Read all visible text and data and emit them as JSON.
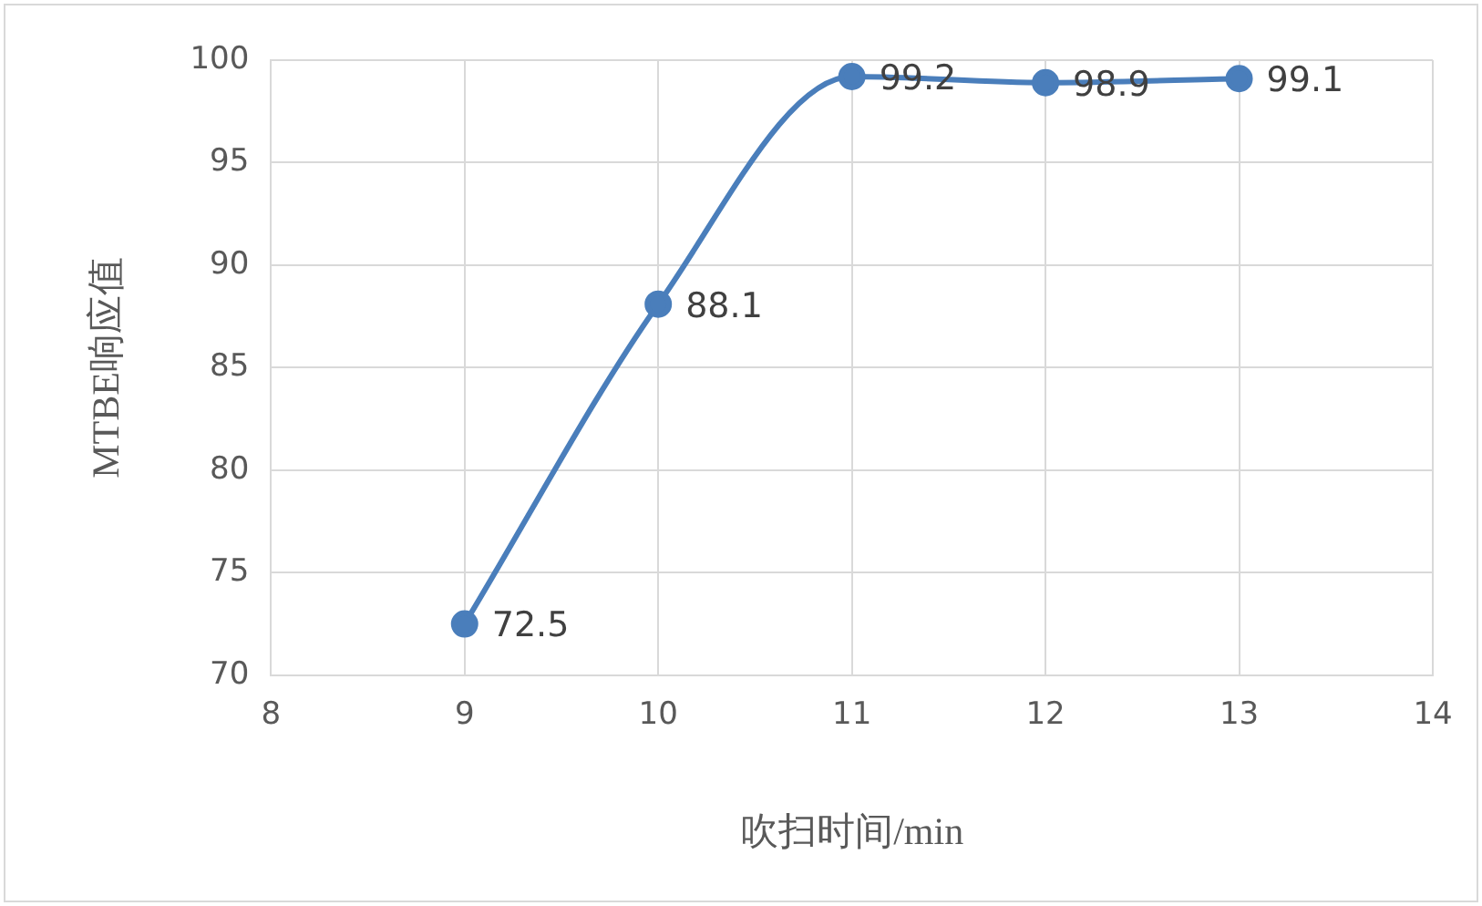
{
  "chart_data": {
    "type": "line",
    "xlabel": "吹扫时间/min",
    "ylabel": "MTBE响应值",
    "x": [
      9,
      10,
      11,
      12,
      13
    ],
    "series": [
      {
        "color": "#4a7ebb",
        "values": [
          72.5,
          88.1,
          99.2,
          98.9,
          99.1
        ]
      }
    ],
    "xlim": [
      8,
      14
    ],
    "xticks": [
      8,
      9,
      10,
      11,
      12,
      13,
      14
    ],
    "ylim": [
      70,
      100
    ],
    "yticks": [
      70,
      75,
      80,
      85,
      90,
      95,
      100
    ],
    "grid": true,
    "legend": false,
    "marker": "circle",
    "line_style": "solid",
    "data_labels": true
  }
}
